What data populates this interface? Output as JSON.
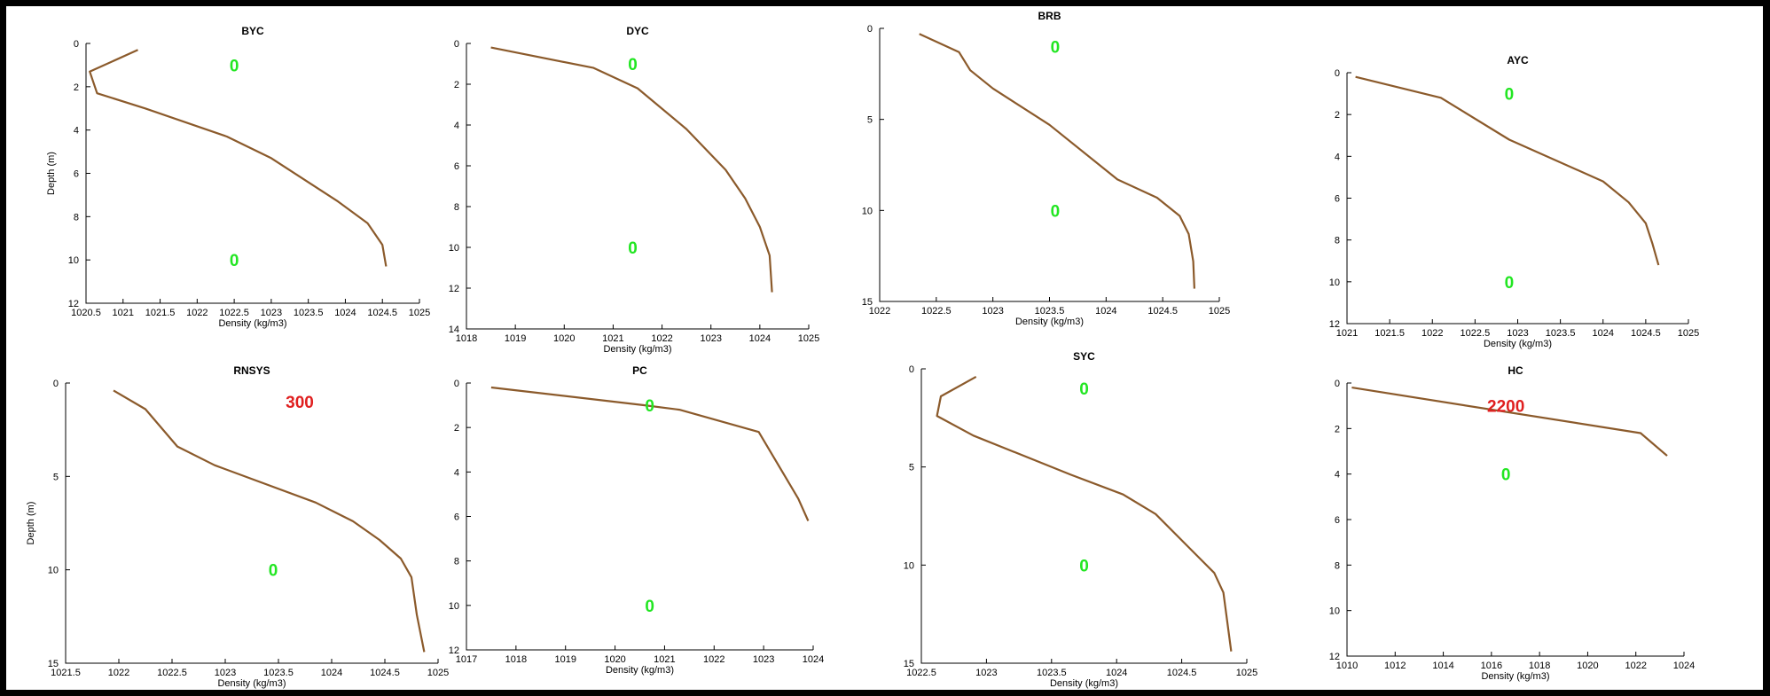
{
  "colors": {
    "background": "#000000",
    "panel": "#ffffff",
    "profile_line": "#8b5a2b",
    "annotation_zero": "#22e622",
    "annotation_value": "#e02020"
  },
  "chart_data": [
    {
      "type": "line",
      "title": "BYC",
      "xlabel": "Density (kg/m3)",
      "ylabel": "Depth (m)",
      "xlim": [
        1020.5,
        1025
      ],
      "ylim": [
        0,
        12
      ],
      "y_inverted": true,
      "xticks": [
        1020.5,
        1021,
        1021.5,
        1022,
        1022.5,
        1023,
        1023.5,
        1024,
        1024.5,
        1025
      ],
      "xtick_labels": [
        "1020.5",
        "1021",
        "1021.5",
        "1022",
        "1022.5",
        "1023",
        "1023.5",
        "1024",
        "1024.5",
        "1025"
      ],
      "yticks": [
        0,
        2,
        4,
        6,
        8,
        10,
        12
      ],
      "ytick_labels": [
        "0",
        "2",
        "4",
        "6",
        "8",
        "10",
        "12"
      ],
      "series": [
        {
          "x": [
            1021.2,
            1020.55,
            1020.65,
            1021.3,
            1022.4,
            1023.0,
            1023.9,
            1024.3,
            1024.5,
            1024.55
          ],
          "y": [
            0.3,
            1.3,
            2.3,
            3.0,
            4.3,
            5.3,
            7.3,
            8.3,
            9.3,
            10.3
          ]
        }
      ],
      "annotations": [
        {
          "text": "0",
          "x": 1022.5,
          "y": 1.0,
          "color": "green"
        },
        {
          "text": "0",
          "x": 1022.5,
          "y": 10.0,
          "color": "green"
        }
      ]
    },
    {
      "type": "line",
      "title": "DYC",
      "xlabel": "Density (kg/m3)",
      "ylabel": "",
      "xlim": [
        1018,
        1025
      ],
      "ylim": [
        0,
        14
      ],
      "y_inverted": true,
      "xticks": [
        1018,
        1019,
        1020,
        1021,
        1022,
        1023,
        1024,
        1025
      ],
      "xtick_labels": [
        "1018",
        "1019",
        "1020",
        "1021",
        "1022",
        "1023",
        "1024",
        "1025"
      ],
      "yticks": [
        0,
        2,
        4,
        6,
        8,
        10,
        12,
        14
      ],
      "ytick_labels": [
        "0",
        "2",
        "4",
        "6",
        "8",
        "10",
        "12",
        "14"
      ],
      "series": [
        {
          "x": [
            1018.5,
            1020.6,
            1021.5,
            1022.5,
            1023.3,
            1023.7,
            1024.0,
            1024.2,
            1024.25
          ],
          "y": [
            0.2,
            1.2,
            2.2,
            4.2,
            6.2,
            7.6,
            9.0,
            10.4,
            12.2
          ]
        }
      ],
      "annotations": [
        {
          "text": "0",
          "x": 1021.4,
          "y": 1.0,
          "color": "green"
        },
        {
          "text": "0",
          "x": 1021.4,
          "y": 10.0,
          "color": "green"
        }
      ]
    },
    {
      "type": "line",
      "title": "BRB",
      "xlabel": "Density (kg/m3)",
      "ylabel": "",
      "xlim": [
        1022,
        1025
      ],
      "ylim": [
        0,
        15
      ],
      "y_inverted": true,
      "xticks": [
        1022,
        1022.5,
        1023,
        1023.5,
        1024,
        1024.5,
        1025
      ],
      "xtick_labels": [
        "1022",
        "1022.5",
        "1023",
        "1023.5",
        "1024",
        "1024.5",
        "1025"
      ],
      "yticks": [
        0,
        5,
        10,
        15
      ],
      "ytick_labels": [
        "0",
        "5",
        "10",
        "15"
      ],
      "series": [
        {
          "x": [
            1022.35,
            1022.7,
            1022.8,
            1023.0,
            1023.5,
            1024.1,
            1024.45,
            1024.65,
            1024.73,
            1024.77,
            1024.78
          ],
          "y": [
            0.3,
            1.3,
            2.3,
            3.3,
            5.3,
            8.3,
            9.3,
            10.3,
            11.3,
            12.8,
            14.3
          ]
        }
      ],
      "annotations": [
        {
          "text": "0",
          "x": 1023.55,
          "y": 1.0,
          "color": "green"
        },
        {
          "text": "0",
          "x": 1023.55,
          "y": 10.0,
          "color": "green"
        }
      ]
    },
    {
      "type": "line",
      "title": "AYC",
      "xlabel": "Density (kg/m3)",
      "ylabel": "",
      "xlim": [
        1021,
        1025
      ],
      "ylim": [
        0,
        12
      ],
      "y_inverted": true,
      "xticks": [
        1021,
        1021.5,
        1022,
        1022.5,
        1023,
        1023.5,
        1024,
        1024.5,
        1025
      ],
      "xtick_labels": [
        "1021",
        "1021.5",
        "1022",
        "1022.5",
        "1023",
        "1023.5",
        "1024",
        "1024.5",
        "1025"
      ],
      "yticks": [
        0,
        2,
        4,
        6,
        8,
        10,
        12
      ],
      "ytick_labels": [
        "0",
        "2",
        "4",
        "6",
        "8",
        "10",
        "12"
      ],
      "series": [
        {
          "x": [
            1021.1,
            1022.1,
            1022.9,
            1024.0,
            1024.3,
            1024.5,
            1024.58,
            1024.65
          ],
          "y": [
            0.2,
            1.2,
            3.2,
            5.2,
            6.2,
            7.2,
            8.2,
            9.2
          ]
        }
      ],
      "annotations": [
        {
          "text": "0",
          "x": 1022.9,
          "y": 1.0,
          "color": "green"
        },
        {
          "text": "0",
          "x": 1022.9,
          "y": 10.0,
          "color": "green"
        }
      ]
    },
    {
      "type": "line",
      "title": "RNSYS",
      "xlabel": "Density (kg/m3)",
      "ylabel": "Depth (m)",
      "xlim": [
        1021.5,
        1025
      ],
      "ylim": [
        0,
        15
      ],
      "y_inverted": true,
      "xticks": [
        1021.5,
        1022,
        1022.5,
        1023,
        1023.5,
        1024,
        1024.5,
        1025
      ],
      "xtick_labels": [
        "1021.5",
        "1022",
        "1022.5",
        "1023",
        "1023.5",
        "1024",
        "1024.5",
        "1025"
      ],
      "yticks": [
        0,
        5,
        10,
        15
      ],
      "ytick_labels": [
        "0",
        "5",
        "10",
        "15"
      ],
      "series": [
        {
          "x": [
            1021.95,
            1022.25,
            1022.55,
            1022.9,
            1023.85,
            1024.2,
            1024.45,
            1024.65,
            1024.75,
            1024.8,
            1024.87
          ],
          "y": [
            0.4,
            1.4,
            3.4,
            4.4,
            6.4,
            7.4,
            8.4,
            9.4,
            10.4,
            12.4,
            14.4
          ]
        }
      ],
      "annotations": [
        {
          "text": "300",
          "x": 1023.7,
          "y": 1.0,
          "color": "red"
        },
        {
          "text": "0",
          "x": 1023.45,
          "y": 10.0,
          "color": "green"
        }
      ]
    },
    {
      "type": "line",
      "title": "PC",
      "xlabel": "Density (kg/m3)",
      "ylabel": "",
      "xlim": [
        1017,
        1024
      ],
      "ylim": [
        0,
        12
      ],
      "y_inverted": true,
      "xticks": [
        1017,
        1018,
        1019,
        1020,
        1021,
        1022,
        1023,
        1024
      ],
      "xtick_labels": [
        "1017",
        "1018",
        "1019",
        "1020",
        "1021",
        "1022",
        "1023",
        "1024"
      ],
      "yticks": [
        0,
        2,
        4,
        6,
        8,
        10,
        12
      ],
      "ytick_labels": [
        "0",
        "2",
        "4",
        "6",
        "8",
        "10",
        "12"
      ],
      "series": [
        {
          "x": [
            1017.5,
            1020.6,
            1021.3,
            1022.9,
            1023.7,
            1023.9
          ],
          "y": [
            0.2,
            1.0,
            1.2,
            2.2,
            5.2,
            6.2
          ]
        }
      ],
      "annotations": [
        {
          "text": "0",
          "x": 1020.7,
          "y": 1.0,
          "color": "green"
        },
        {
          "text": "0",
          "x": 1020.7,
          "y": 10.0,
          "color": "green"
        }
      ]
    },
    {
      "type": "line",
      "title": "SYC",
      "xlabel": "Density (kg/m3)",
      "ylabel": "",
      "xlim": [
        1022.5,
        1025
      ],
      "ylim": [
        0,
        15
      ],
      "y_inverted": true,
      "xticks": [
        1022.5,
        1023,
        1023.5,
        1024,
        1024.5,
        1025
      ],
      "xtick_labels": [
        "1022.5",
        "1023",
        "1023.5",
        "1024",
        "1024.5",
        "1025"
      ],
      "yticks": [
        0,
        5,
        10,
        15
      ],
      "ytick_labels": [
        "0",
        "5",
        "10",
        "15"
      ],
      "series": [
        {
          "x": [
            1022.92,
            1022.65,
            1022.62,
            1022.9,
            1023.65,
            1024.05,
            1024.3,
            1024.6,
            1024.75,
            1024.82,
            1024.88
          ],
          "y": [
            0.4,
            1.4,
            2.4,
            3.4,
            5.4,
            6.4,
            7.4,
            9.4,
            10.4,
            11.4,
            14.4
          ]
        }
      ],
      "annotations": [
        {
          "text": "0",
          "x": 1023.75,
          "y": 1.0,
          "color": "green"
        },
        {
          "text": "0",
          "x": 1023.75,
          "y": 10.0,
          "color": "green"
        }
      ]
    },
    {
      "type": "line",
      "title": "HC",
      "xlabel": "Density (kg/m3)",
      "ylabel": "",
      "xlim": [
        1010,
        1024
      ],
      "ylim": [
        0,
        12
      ],
      "y_inverted": true,
      "xticks": [
        1010,
        1012,
        1014,
        1016,
        1018,
        1020,
        1022,
        1024
      ],
      "xtick_labels": [
        "1010",
        "1012",
        "1014",
        "1016",
        "1018",
        "1020",
        "1022",
        "1024"
      ],
      "yticks": [
        0,
        2,
        4,
        6,
        8,
        10,
        12
      ],
      "ytick_labels": [
        "0",
        "2",
        "4",
        "6",
        "8",
        "10",
        "12"
      ],
      "series": [
        {
          "x": [
            1010.2,
            1022.2,
            1023.3
          ],
          "y": [
            0.2,
            2.2,
            3.2
          ]
        }
      ],
      "annotations": [
        {
          "text": "2200",
          "x": 1016.6,
          "y": 1.0,
          "color": "red"
        },
        {
          "text": "0",
          "x": 1016.6,
          "y": 4.0,
          "color": "green"
        }
      ]
    }
  ]
}
